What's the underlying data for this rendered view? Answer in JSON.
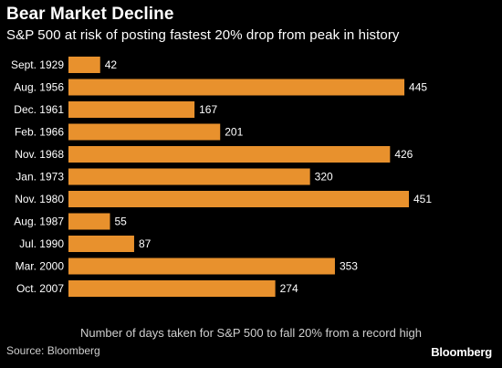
{
  "header": {
    "title": "Bear Market Decline",
    "subtitle": "S&P 500 at risk of posting fastest 20% drop from peak in history"
  },
  "footer": {
    "note": "Number of days taken for S&P 500 to fall 20% from a record high",
    "source": "Source: Bloomberg",
    "logo": "Bloomberg"
  },
  "colors": {
    "background": "#000000",
    "bar": "#E8912D",
    "text": "#ffffff"
  },
  "chart_data": {
    "type": "bar",
    "orientation": "horizontal",
    "title": "Bear Market Decline",
    "subtitle": "S&P 500 at risk of posting fastest 20% drop from peak in history",
    "xlabel": "Number of days taken for S&P 500 to fall 20% from a record high",
    "ylabel": "",
    "categories": [
      "Sept. 1929",
      "Aug. 1956",
      "Dec. 1961",
      "Feb. 1966",
      "Nov. 1968",
      "Jan. 1973",
      "Nov. 1980",
      "Aug. 1987",
      "Jul. 1990",
      "Mar. 2000",
      "Oct. 2007"
    ],
    "values": [
      42,
      445,
      167,
      201,
      426,
      320,
      451,
      55,
      87,
      353,
      274
    ],
    "xlim": [
      0,
      451
    ],
    "grid": false,
    "data_labels": true
  }
}
